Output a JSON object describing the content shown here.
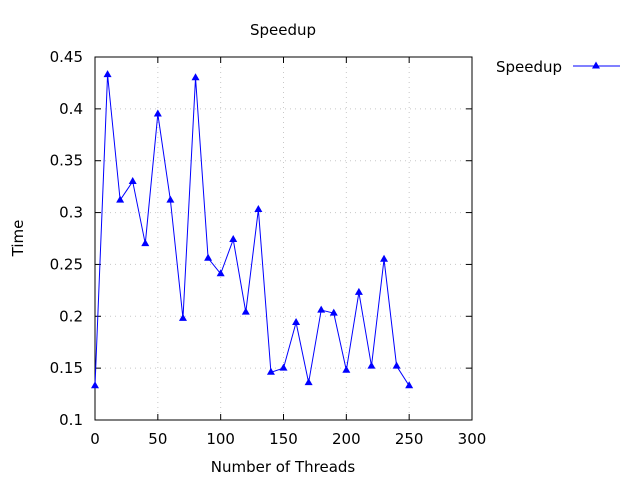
{
  "chart_data": {
    "type": "line",
    "title": "Speedup",
    "xlabel": "Number of Threads",
    "ylabel": "Time",
    "xlim": [
      0,
      300
    ],
    "ylim": [
      0.1,
      0.45
    ],
    "xticks": [
      "0",
      "50",
      "100",
      "150",
      "200",
      "250",
      "300"
    ],
    "yticks": [
      "0.1",
      "0.15",
      "0.2",
      "0.25",
      "0.3",
      "0.35",
      "0.4",
      "0.45"
    ],
    "grid": true,
    "legend_position": "top-right outside",
    "series": [
      {
        "name": "Speedup",
        "color": "#0000ff",
        "marker": "triangle",
        "x": [
          0,
          10,
          20,
          30,
          40,
          50,
          60,
          70,
          80,
          90,
          100,
          110,
          120,
          130,
          140,
          150,
          160,
          170,
          180,
          190,
          200,
          210,
          220,
          230,
          240,
          250
        ],
        "y": [
          0.133,
          0.433,
          0.312,
          0.33,
          0.27,
          0.395,
          0.312,
          0.198,
          0.43,
          0.256,
          0.241,
          0.274,
          0.204,
          0.303,
          0.146,
          0.15,
          0.194,
          0.136,
          0.206,
          0.203,
          0.148,
          0.223,
          0.152,
          0.255,
          0.152,
          0.133
        ]
      }
    ]
  }
}
